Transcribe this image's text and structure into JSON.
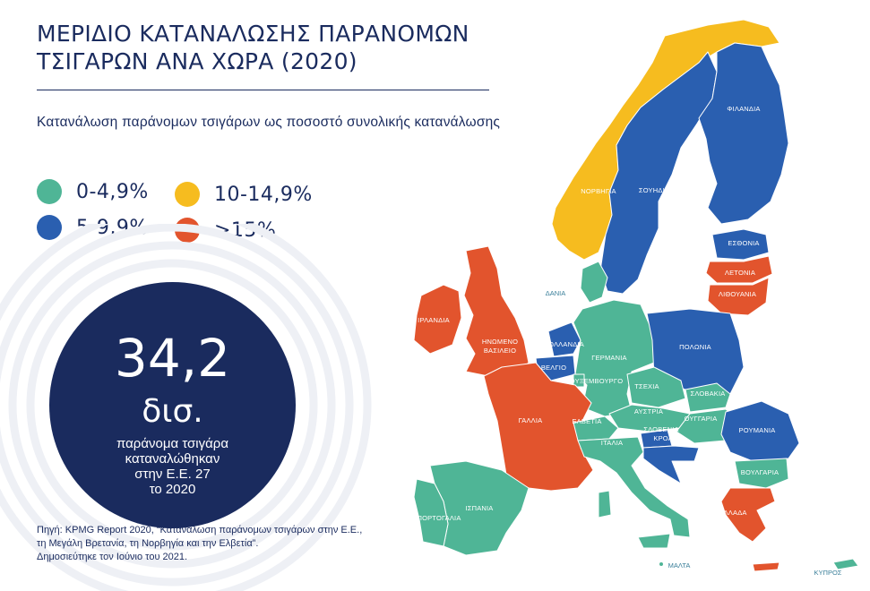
{
  "title_line1": "ΜΕΡΙΔΙΟ ΚΑΤΑΝΑΛΩΣΗΣ ΠΑΡΑΝΟΜΩΝ",
  "title_line2": "ΤΣΙΓΑΡΩΝ ΑΝΑ ΧΩΡΑ (2020)",
  "subtitle": "Κατανάλωση παράνομων τσιγάρων ως ποσοστό συνολικής κατανάλωσης",
  "colors": {
    "green": "#4fb596",
    "blue": "#2a5fb0",
    "yellow": "#f6bc1f",
    "red": "#e2542d",
    "navy": "#1a2b5e"
  },
  "legend": [
    {
      "label": "0-4,9%",
      "color": "#4fb596"
    },
    {
      "label": "5-9,9%",
      "color": "#2a5fb0"
    },
    {
      "label": "10-14,9%",
      "color": "#f6bc1f"
    },
    {
      "label": ">15%",
      "color": "#e2542d"
    }
  ],
  "stat": {
    "number": "34,2",
    "unit": "δισ.",
    "desc_1": "παράνομα τσιγάρα",
    "desc_2": "καταναλώθηκαν",
    "desc_3": "στην Ε.Ε. 27",
    "desc_4": "το 2020"
  },
  "source_1": "Πηγή: KPMG Report 2020, “Κατανάλωση παράνομων τσιγάρων στην Ε.Ε.,",
  "source_2": "τη Μεγάλη Βρετανία, τη Νορβηγία και την Ελβετία”.",
  "source_3": "Δημοσιεύτηκε τον Ιούνιο του 2021.",
  "countries": {
    "finland": "ΦΙΛΑΝΔΙΑ",
    "sweden": "ΣΟΥΗΔΙΑ",
    "norway": "ΝΟΡΒΗΓΙΑ",
    "estonia": "ΕΣΘΟΝΙΑ",
    "latvia": "ΛΕΤΟΝΙΑ",
    "lithuania": "ΛΙΘΟΥΑΝΙΑ",
    "denmark": "ΔΑΝΙΑ",
    "ireland": "ΙΡΛΑΝΔΙΑ",
    "uk_1": "ΗΝΩΜΕΝΟ",
    "uk_2": "ΒΑΣΙΛΕΙΟ",
    "netherlands": "ΟΛΛΑΝΔΙΑ",
    "belgium": "ΒΕΛΓΙΟ",
    "germany": "ΓΕΡΜΑΝΙΑ",
    "poland": "ΠΟΛΩΝΙΑ",
    "luxembourg": "ΛΟΥΞΕΜΒΟΥΡΓΟ",
    "czechia": "ΤΣΕΧΙΑ",
    "slovakia": "ΣΛΟΒΑΚΙΑ",
    "austria": "ΑΥΣΤΡΙΑ",
    "hungary": "ΟΥΓΓΑΡΙΑ",
    "france": "ΓΑΛΛΙΑ",
    "switzerland": "ΕΛΒΕΤΙΑ",
    "slovenia": "ΣΛΟΒΕΝΙΑ",
    "croatia": "ΚΡΟΑΤΙΑ",
    "romania": "ΡΟΥΜΑΝΙΑ",
    "italy": "ΙΤΑΛΙΑ",
    "bulgaria": "ΒΟΥΛΓΑΡΙΑ",
    "spain": "ΙΣΠΑΝΙΑ",
    "portugal": "ΠΟΡΤΟΓΑΛΙΑ",
    "greece": "ΕΛΛΑΔΑ",
    "malta": "ΜΑΛΤΑ",
    "cyprus": "ΚΥΠΡΟΣ"
  }
}
